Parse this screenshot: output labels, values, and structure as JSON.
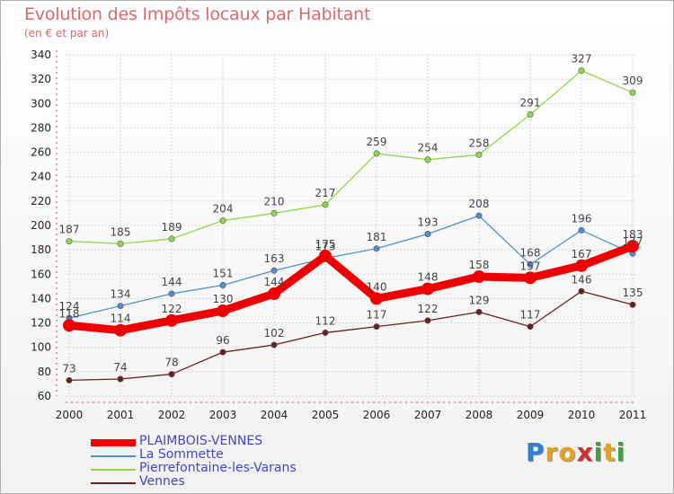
{
  "title": "Evolution des Impôts locaux par Habitant",
  "subtitle": "(en € et par an)",
  "logo": {
    "letters": [
      {
        "ch": "P",
        "color": "#2d7fd0"
      },
      {
        "ch": "r",
        "color": "#e8a020"
      },
      {
        "ch": "o",
        "color": "#e8a020"
      },
      {
        "ch": "x",
        "color": "#d03030"
      },
      {
        "ch": "i",
        "color": "#40a040"
      },
      {
        "ch": "t",
        "color": "#e8a020"
      },
      {
        "ch": "i",
        "color": "#40a040"
      }
    ]
  },
  "chart_data": {
    "type": "line",
    "title": "Evolution des Impôts locaux par Habitant",
    "subtitle": "(en € et par an)",
    "x": [
      2000,
      2001,
      2002,
      2003,
      2004,
      2005,
      2006,
      2007,
      2008,
      2009,
      2010,
      2011
    ],
    "ylim": [
      60,
      340
    ],
    "yticks": [
      60,
      80,
      100,
      120,
      140,
      160,
      180,
      200,
      220,
      240,
      260,
      280,
      300,
      320,
      340
    ],
    "grid": true,
    "legend_position": "bottom-left",
    "series": [
      {
        "name": "PLAIMBOIS-VENNES",
        "color": "#ee0000",
        "width": "thick",
        "values": [
          118,
          114,
          122,
          130,
          144,
          175,
          140,
          148,
          158,
          157,
          167,
          183
        ]
      },
      {
        "name": "La Sommette",
        "color": "#4f8fd0",
        "width": "thin",
        "values": [
          124,
          134,
          144,
          151,
          163,
          173,
          181,
          193,
          208,
          168,
          196,
          177
        ]
      },
      {
        "name": "Pierrefontaine-les-Varans",
        "color": "#8ed84a",
        "width": "thin",
        "values": [
          187,
          185,
          189,
          204,
          210,
          217,
          259,
          254,
          258,
          291,
          327,
          309
        ]
      },
      {
        "name": "Vennes",
        "color": "#6b1f1f",
        "width": "thin",
        "values": [
          73,
          74,
          78,
          96,
          102,
          112,
          117,
          122,
          129,
          117,
          146,
          135
        ]
      }
    ]
  }
}
